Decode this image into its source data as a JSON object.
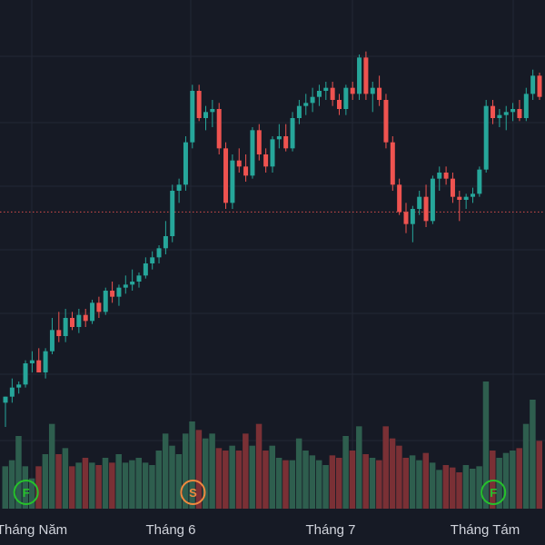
{
  "chart_data": {
    "type": "candlestick",
    "colors": {
      "background": "#161a25",
      "grid": "#232835",
      "up": "#26a69a",
      "down": "#ef5350",
      "volume_up": "#2e5e4e",
      "volume_down": "#7a3035",
      "price_line": "#ef5350",
      "marker_F": "#26c12b",
      "marker_S": "#f0883e"
    },
    "x_labels": [
      "Tháng Năm",
      "Tháng 6",
      "Tháng 7",
      "Tháng Tám"
    ],
    "ohlc": [
      [
        0.0,
        0.02,
        -0.08,
        0.02
      ],
      [
        0.02,
        0.08,
        0.0,
        0.05
      ],
      [
        0.05,
        0.07,
        0.03,
        0.06
      ],
      [
        0.06,
        0.14,
        0.05,
        0.13
      ],
      [
        0.13,
        0.17,
        0.1,
        0.14
      ],
      [
        0.14,
        0.18,
        0.1,
        0.1
      ],
      [
        0.1,
        0.18,
        0.08,
        0.17
      ],
      [
        0.17,
        0.28,
        0.16,
        0.24
      ],
      [
        0.24,
        0.3,
        0.2,
        0.22
      ],
      [
        0.22,
        0.31,
        0.2,
        0.28
      ],
      [
        0.28,
        0.3,
        0.24,
        0.25
      ],
      [
        0.25,
        0.31,
        0.23,
        0.29
      ],
      [
        0.29,
        0.31,
        0.25,
        0.27
      ],
      [
        0.27,
        0.34,
        0.26,
        0.33
      ],
      [
        0.33,
        0.35,
        0.28,
        0.3
      ],
      [
        0.3,
        0.38,
        0.29,
        0.37
      ],
      [
        0.37,
        0.4,
        0.33,
        0.35
      ],
      [
        0.35,
        0.39,
        0.32,
        0.38
      ],
      [
        0.38,
        0.42,
        0.36,
        0.39
      ],
      [
        0.39,
        0.44,
        0.37,
        0.4
      ],
      [
        0.4,
        0.43,
        0.38,
        0.42
      ],
      [
        0.42,
        0.48,
        0.41,
        0.46
      ],
      [
        0.46,
        0.5,
        0.44,
        0.48
      ],
      [
        0.48,
        0.52,
        0.46,
        0.51
      ],
      [
        0.51,
        0.6,
        0.49,
        0.55
      ],
      [
        0.55,
        0.72,
        0.53,
        0.7
      ],
      [
        0.7,
        0.74,
        0.66,
        0.72
      ],
      [
        0.72,
        0.88,
        0.7,
        0.86
      ],
      [
        0.86,
        1.05,
        0.84,
        1.03
      ],
      [
        1.03,
        1.05,
        0.93,
        0.94
      ],
      [
        0.94,
        0.98,
        0.9,
        0.96
      ],
      [
        0.96,
        1.0,
        0.91,
        0.97
      ],
      [
        0.97,
        0.99,
        0.82,
        0.84
      ],
      [
        0.84,
        0.86,
        0.64,
        0.66
      ],
      [
        0.66,
        0.82,
        0.64,
        0.8
      ],
      [
        0.8,
        0.84,
        0.76,
        0.78
      ],
      [
        0.78,
        0.82,
        0.73,
        0.75
      ],
      [
        0.75,
        0.91,
        0.74,
        0.9
      ],
      [
        0.9,
        0.92,
        0.8,
        0.82
      ],
      [
        0.82,
        0.84,
        0.76,
        0.78
      ],
      [
        0.78,
        0.88,
        0.76,
        0.87
      ],
      [
        0.87,
        0.92,
        0.84,
        0.88
      ],
      [
        0.88,
        0.92,
        0.83,
        0.84
      ],
      [
        0.84,
        0.96,
        0.83,
        0.94
      ],
      [
        0.94,
        1.0,
        0.92,
        0.98
      ],
      [
        0.98,
        1.02,
        0.95,
        0.99
      ],
      [
        0.99,
        1.04,
        0.96,
        1.01
      ],
      [
        1.01,
        1.05,
        0.98,
        1.03
      ],
      [
        1.03,
        1.06,
        1.0,
        1.04
      ],
      [
        1.04,
        1.06,
        0.98,
        1.0
      ],
      [
        1.0,
        1.02,
        0.95,
        0.97
      ],
      [
        0.97,
        1.05,
        0.95,
        1.04
      ],
      [
        1.04,
        1.06,
        1.0,
        1.02
      ],
      [
        1.02,
        1.15,
        1.0,
        1.14
      ],
      [
        1.14,
        1.16,
        1.0,
        1.02
      ],
      [
        1.02,
        1.06,
        0.96,
        1.04
      ],
      [
        1.04,
        1.08,
        0.98,
        1.0
      ],
      [
        1.0,
        1.02,
        0.84,
        0.86
      ],
      [
        0.86,
        0.88,
        0.7,
        0.72
      ],
      [
        0.72,
        0.74,
        0.62,
        0.63
      ],
      [
        0.63,
        0.66,
        0.56,
        0.59
      ],
      [
        0.59,
        0.65,
        0.53,
        0.64
      ],
      [
        0.64,
        0.7,
        0.62,
        0.68
      ],
      [
        0.68,
        0.72,
        0.58,
        0.6
      ],
      [
        0.6,
        0.75,
        0.59,
        0.74
      ],
      [
        0.74,
        0.78,
        0.7,
        0.76
      ],
      [
        0.76,
        0.78,
        0.72,
        0.74
      ],
      [
        0.74,
        0.76,
        0.66,
        0.68
      ],
      [
        0.68,
        0.7,
        0.6,
        0.67
      ],
      [
        0.67,
        0.69,
        0.64,
        0.68
      ],
      [
        0.68,
        0.71,
        0.66,
        0.69
      ],
      [
        0.69,
        0.78,
        0.68,
        0.77
      ],
      [
        0.77,
        1.0,
        0.76,
        0.98
      ],
      [
        0.98,
        1.0,
        0.92,
        0.94
      ],
      [
        0.94,
        0.97,
        0.91,
        0.95
      ],
      [
        0.95,
        0.98,
        0.9,
        0.96
      ],
      [
        0.96,
        0.99,
        0.93,
        0.97
      ],
      [
        0.97,
        1.0,
        0.93,
        0.94
      ],
      [
        0.94,
        1.04,
        0.93,
        1.02
      ],
      [
        1.02,
        1.1,
        1.0,
        1.08
      ],
      [
        1.08,
        1.09,
        1.0,
        1.01
      ]
    ],
    "volume": [
      0.35,
      0.4,
      0.6,
      0.35,
      0.25,
      0.35,
      0.45,
      0.7,
      0.45,
      0.5,
      0.35,
      0.38,
      0.42,
      0.38,
      0.36,
      0.42,
      0.38,
      0.45,
      0.38,
      0.4,
      0.42,
      0.38,
      0.36,
      0.48,
      0.62,
      0.52,
      0.45,
      0.62,
      0.72,
      0.65,
      0.58,
      0.62,
      0.5,
      0.48,
      0.52,
      0.48,
      0.62,
      0.52,
      0.7,
      0.48,
      0.52,
      0.42,
      0.4,
      0.4,
      0.58,
      0.48,
      0.44,
      0.4,
      0.36,
      0.44,
      0.42,
      0.6,
      0.48,
      0.68,
      0.45,
      0.42,
      0.4,
      0.68,
      0.58,
      0.52,
      0.42,
      0.44,
      0.4,
      0.46,
      0.38,
      0.32,
      0.36,
      0.34,
      0.3,
      0.36,
      0.33,
      0.35,
      1.05,
      0.48,
      0.42,
      0.46,
      0.48,
      0.5,
      0.7,
      0.9,
      0.56
    ],
    "price_line_value": 0.63,
    "markers": [
      {
        "letter": "F",
        "index": 2
      },
      {
        "letter": "S",
        "index": 27
      },
      {
        "letter": "F",
        "index": 72
      }
    ]
  }
}
